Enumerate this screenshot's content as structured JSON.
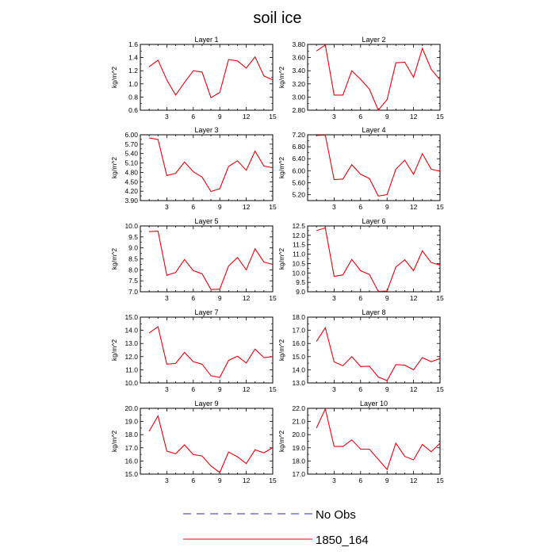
{
  "title": "soil ice",
  "legend": [
    {
      "label": "No Obs",
      "color": "#2b2bd0",
      "dash": true
    },
    {
      "label": "1850_164",
      "color": "#e8000b",
      "dash": false
    }
  ],
  "chart_data": [
    {
      "type": "line",
      "title": "Layer 1",
      "ylabel": "kg/m^2",
      "xlim": [
        0,
        15
      ],
      "ylim": [
        0.6,
        1.6
      ],
      "xticks": [
        "3",
        "6",
        "9",
        "12",
        "15"
      ],
      "yticks": [
        "0.6",
        "0.8",
        "1.0",
        "1.2",
        "1.4",
        "1.6"
      ],
      "series": [
        {
          "x": [
            1,
            2,
            3,
            4,
            5,
            6,
            7,
            8,
            9,
            10,
            11,
            12,
            13,
            14,
            15
          ],
          "values": [
            1.26,
            1.36,
            1.06,
            0.83,
            1.02,
            1.2,
            1.18,
            0.79,
            0.87,
            1.37,
            1.35,
            1.24,
            1.41,
            1.12,
            1.06
          ]
        }
      ]
    },
    {
      "type": "line",
      "title": "Layer 2",
      "ylabel": "kg/m^2",
      "xlim": [
        0,
        15
      ],
      "ylim": [
        2.8,
        3.8
      ],
      "xticks": [
        "3",
        "6",
        "9",
        "12",
        "15"
      ],
      "yticks": [
        "2.80",
        "3.00",
        "3.20",
        "3.40",
        "3.60",
        "3.80"
      ],
      "series": [
        {
          "x": [
            1,
            2,
            3,
            4,
            5,
            6,
            7,
            8,
            9,
            10,
            11,
            12,
            13,
            14,
            15
          ],
          "values": [
            3.7,
            3.79,
            3.03,
            3.03,
            3.4,
            3.27,
            3.12,
            2.8,
            2.96,
            3.52,
            3.53,
            3.3,
            3.74,
            3.42,
            3.26
          ]
        }
      ]
    },
    {
      "type": "line",
      "title": "Layer 3",
      "ylabel": "kg/m^2",
      "xlim": [
        0,
        15
      ],
      "ylim": [
        3.9,
        6.0
      ],
      "xticks": [
        "3",
        "6",
        "9",
        "12",
        "15"
      ],
      "yticks": [
        "3.90",
        "4.20",
        "4.50",
        "4.80",
        "5.10",
        "5.40",
        "5.70",
        "6.00"
      ],
      "series": [
        {
          "x": [
            1,
            2,
            3,
            4,
            5,
            6,
            7,
            8,
            9,
            10,
            11,
            12,
            13,
            14,
            15
          ],
          "values": [
            5.9,
            5.85,
            4.7,
            4.77,
            5.13,
            4.82,
            4.65,
            4.19,
            4.28,
            4.99,
            5.17,
            4.87,
            5.48,
            5.0,
            4.95
          ]
        }
      ]
    },
    {
      "type": "line",
      "title": "Layer 4",
      "ylabel": "kg/m^2",
      "xlim": [
        0,
        15
      ],
      "ylim": [
        5.0,
        7.2
      ],
      "xticks": [
        "3",
        "6",
        "9",
        "12",
        "15"
      ],
      "yticks": [
        "5.20",
        "5.60",
        "6.00",
        "6.40",
        "6.80",
        "7.20"
      ],
      "series": [
        {
          "x": [
            1,
            2,
            3,
            4,
            5,
            6,
            7,
            8,
            9,
            10,
            11,
            12,
            13,
            14,
            15
          ],
          "values": [
            7.18,
            7.19,
            5.7,
            5.72,
            6.2,
            5.88,
            5.74,
            5.15,
            5.2,
            6.05,
            6.35,
            5.88,
            6.57,
            6.05,
            5.98
          ]
        }
      ]
    },
    {
      "type": "line",
      "title": "Layer 5",
      "ylabel": "kg/m^2",
      "xlim": [
        0,
        15
      ],
      "ylim": [
        7.0,
        10.0
      ],
      "xticks": [
        "3",
        "6",
        "9",
        "12",
        "15"
      ],
      "yticks": [
        "7.0",
        "7.5",
        "8.0",
        "8.5",
        "9.0",
        "9.5",
        "10.0"
      ],
      "series": [
        {
          "x": [
            1,
            2,
            3,
            4,
            5,
            6,
            7,
            8,
            9,
            10,
            11,
            12,
            13,
            14,
            15
          ],
          "values": [
            9.74,
            9.77,
            7.75,
            7.88,
            8.47,
            7.96,
            7.82,
            7.1,
            7.12,
            8.17,
            8.56,
            8.0,
            8.96,
            8.35,
            8.25
          ]
        }
      ]
    },
    {
      "type": "line",
      "title": "Layer 6",
      "ylabel": "kg/m^2",
      "xlim": [
        0,
        15
      ],
      "ylim": [
        9.0,
        12.5
      ],
      "xticks": [
        "3",
        "6",
        "9",
        "12",
        "15"
      ],
      "yticks": [
        "9.0",
        "9.5",
        "10.0",
        "10.5",
        "11.0",
        "11.5",
        "12.0",
        "12.5"
      ],
      "series": [
        {
          "x": [
            1,
            2,
            3,
            4,
            5,
            6,
            7,
            8,
            9,
            10,
            11,
            12,
            13,
            14,
            15
          ],
          "values": [
            12.25,
            12.4,
            9.82,
            9.9,
            10.72,
            10.12,
            9.92,
            9.02,
            9.04,
            10.32,
            10.7,
            10.12,
            11.17,
            10.55,
            10.42
          ]
        }
      ]
    },
    {
      "type": "line",
      "title": "Layer 7",
      "ylabel": "kg/m^2",
      "xlim": [
        0,
        15
      ],
      "ylim": [
        10.0,
        15.0
      ],
      "xticks": [
        "3",
        "6",
        "9",
        "12",
        "15"
      ],
      "yticks": [
        "10.0",
        "11.0",
        "12.0",
        "13.0",
        "14.0",
        "15.0"
      ],
      "series": [
        {
          "x": [
            1,
            2,
            3,
            4,
            5,
            6,
            7,
            8,
            9,
            10,
            11,
            12,
            13,
            14,
            15
          ],
          "values": [
            13.8,
            14.28,
            11.43,
            11.48,
            12.32,
            11.62,
            11.43,
            10.55,
            10.42,
            11.71,
            12.03,
            11.52,
            12.58,
            11.92,
            12.0
          ]
        }
      ]
    },
    {
      "type": "line",
      "title": "Layer 8",
      "ylabel": "kg/m^2",
      "xlim": [
        0,
        15
      ],
      "ylim": [
        13.0,
        18.0
      ],
      "xticks": [
        "3",
        "6",
        "9",
        "12",
        "15"
      ],
      "yticks": [
        "13.0",
        "14.0",
        "15.0",
        "16.0",
        "17.0",
        "18.0"
      ],
      "series": [
        {
          "x": [
            1,
            2,
            3,
            4,
            5,
            6,
            7,
            8,
            9,
            10,
            11,
            12,
            13,
            14,
            15
          ],
          "values": [
            16.15,
            17.2,
            14.6,
            14.3,
            15.0,
            14.25,
            14.27,
            13.45,
            13.18,
            14.4,
            14.35,
            14.0,
            14.92,
            14.62,
            14.85
          ]
        }
      ]
    },
    {
      "type": "line",
      "title": "Layer 9",
      "ylabel": "kg/m^2",
      "xlim": [
        0,
        15
      ],
      "ylim": [
        15.0,
        20.0
      ],
      "xticks": [
        "3",
        "6",
        "9",
        "12",
        "15"
      ],
      "yticks": [
        "15.0",
        "16.0",
        "17.0",
        "18.0",
        "19.0",
        "20.0"
      ],
      "series": [
        {
          "x": [
            1,
            2,
            3,
            4,
            5,
            6,
            7,
            8,
            9,
            10,
            11,
            12,
            13,
            14,
            15
          ],
          "values": [
            18.25,
            19.42,
            16.75,
            16.55,
            17.22,
            16.48,
            16.38,
            15.62,
            15.12,
            16.68,
            16.32,
            15.8,
            16.85,
            16.62,
            17.02
          ]
        }
      ]
    },
    {
      "type": "line",
      "title": "Layer 10",
      "ylabel": "kg/m^2",
      "xlim": [
        0,
        15
      ],
      "ylim": [
        17.0,
        22.0
      ],
      "xticks": [
        "3",
        "6",
        "9",
        "12",
        "15"
      ],
      "yticks": [
        "17.0",
        "18.0",
        "19.0",
        "20.0",
        "21.0",
        "22.0"
      ],
      "series": [
        {
          "x": [
            1,
            2,
            3,
            4,
            5,
            6,
            7,
            8,
            9,
            10,
            11,
            12,
            13,
            14,
            15
          ],
          "values": [
            20.5,
            21.95,
            19.1,
            19.1,
            19.6,
            18.9,
            18.9,
            18.12,
            17.35,
            19.35,
            18.35,
            18.08,
            19.25,
            18.7,
            19.35
          ]
        }
      ]
    }
  ]
}
